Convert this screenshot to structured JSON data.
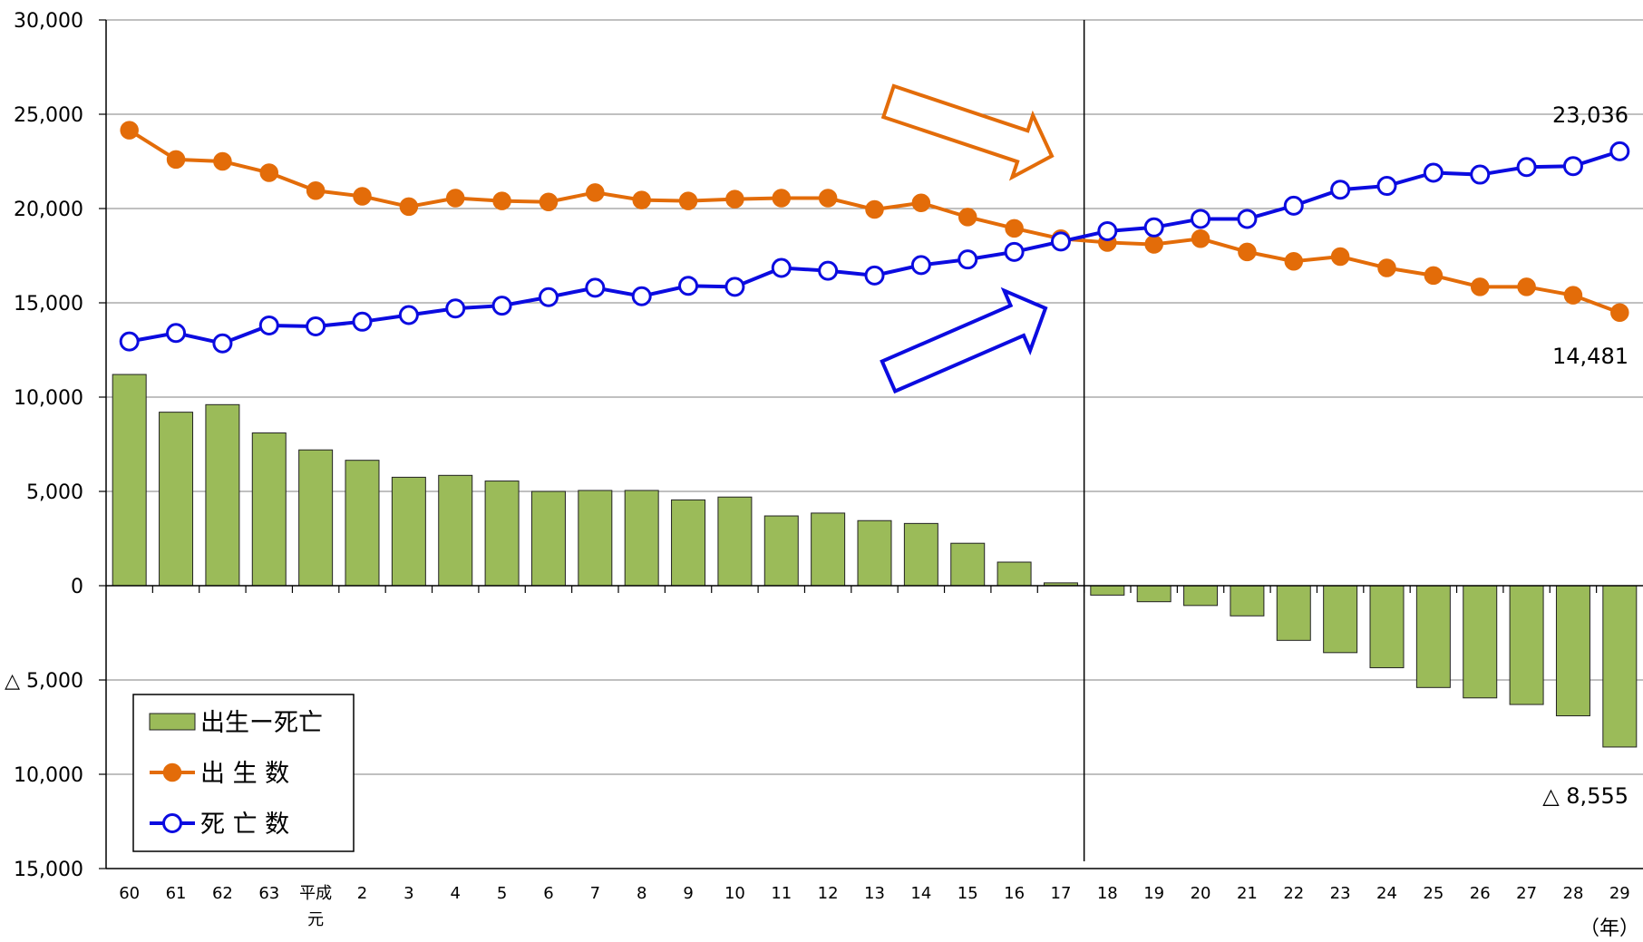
{
  "chart_data": {
    "type": "bar+line",
    "title": "",
    "x_unit": "（年）",
    "categories": [
      "60",
      "61",
      "62",
      "63",
      "平成\n元",
      "2",
      "3",
      "4",
      "5",
      "6",
      "7",
      "8",
      "9",
      "10",
      "11",
      "12",
      "13",
      "14",
      "15",
      "16",
      "17",
      "18",
      "19",
      "20",
      "21",
      "22",
      "23",
      "24",
      "25",
      "26",
      "27",
      "28",
      "29"
    ],
    "ylim": [
      -15000,
      30000
    ],
    "yticks": [
      {
        "value": 30000,
        "label": "30,000"
      },
      {
        "value": 25000,
        "label": "25,000"
      },
      {
        "value": 20000,
        "label": "20,000"
      },
      {
        "value": 15000,
        "label": "15,000"
      },
      {
        "value": 10000,
        "label": "10,000"
      },
      {
        "value": 5000,
        "label": "5,000"
      },
      {
        "value": 0,
        "label": "0"
      },
      {
        "value": -5000,
        "label": "△ 5,000"
      },
      {
        "value": -10000,
        "label": "10,000"
      },
      {
        "value": -15000,
        "label": "15,000"
      }
    ],
    "grid": true,
    "reference_line_category": "17",
    "series": [
      {
        "name": "出生ー死亡",
        "type": "bar",
        "color": "#9BBB59",
        "values": [
          11200,
          9200,
          9600,
          8100,
          7200,
          6650,
          5750,
          5850,
          5550,
          5000,
          5050,
          5050,
          4550,
          4700,
          3700,
          3850,
          3450,
          3300,
          2250,
          1250,
          150,
          -500,
          -850,
          -1050,
          -1600,
          -2900,
          -3550,
          -4350,
          -5400,
          -5950,
          -6300,
          -6900,
          -8555
        ]
      },
      {
        "name": "出 生 数",
        "type": "line",
        "color": "#E36C09",
        "marker": "filled-circle",
        "values": [
          24150,
          22600,
          22500,
          21900,
          20950,
          20650,
          20100,
          20550,
          20400,
          20350,
          20850,
          20450,
          20400,
          20500,
          20550,
          20550,
          19950,
          20300,
          19550,
          18950,
          18400,
          18200,
          18100,
          18400,
          17700,
          17200,
          17450,
          16850,
          16450,
          15850,
          15850,
          15400,
          14481
        ]
      },
      {
        "name": "死 亡 数",
        "type": "line",
        "color": "#0B0BE0",
        "marker": "hollow-circle",
        "values": [
          12950,
          13400,
          12850,
          13800,
          13750,
          14000,
          14350,
          14700,
          14850,
          15300,
          15800,
          15350,
          15900,
          15850,
          16850,
          16700,
          16450,
          17000,
          17300,
          17700,
          18250,
          18800,
          19000,
          19450,
          19450,
          20150,
          21000,
          21200,
          21900,
          21800,
          22200,
          22250,
          23036
        ]
      }
    ],
    "annotations": [
      {
        "text": "23,036",
        "series": "死 亡 数",
        "category": "29"
      },
      {
        "text": "14,481",
        "series": "出 生 数",
        "category": "29"
      },
      {
        "text": "△ 8,555",
        "series": "出生ー死亡",
        "category": "29"
      }
    ],
    "legend": {
      "position": "bottom-left",
      "items": [
        "出生ー死亡",
        "出 生 数",
        "死 亡 数"
      ]
    },
    "arrows": [
      {
        "color": "#E36C09",
        "direction": "down-right"
      },
      {
        "color": "#0B0BE0",
        "direction": "up-right"
      }
    ]
  }
}
